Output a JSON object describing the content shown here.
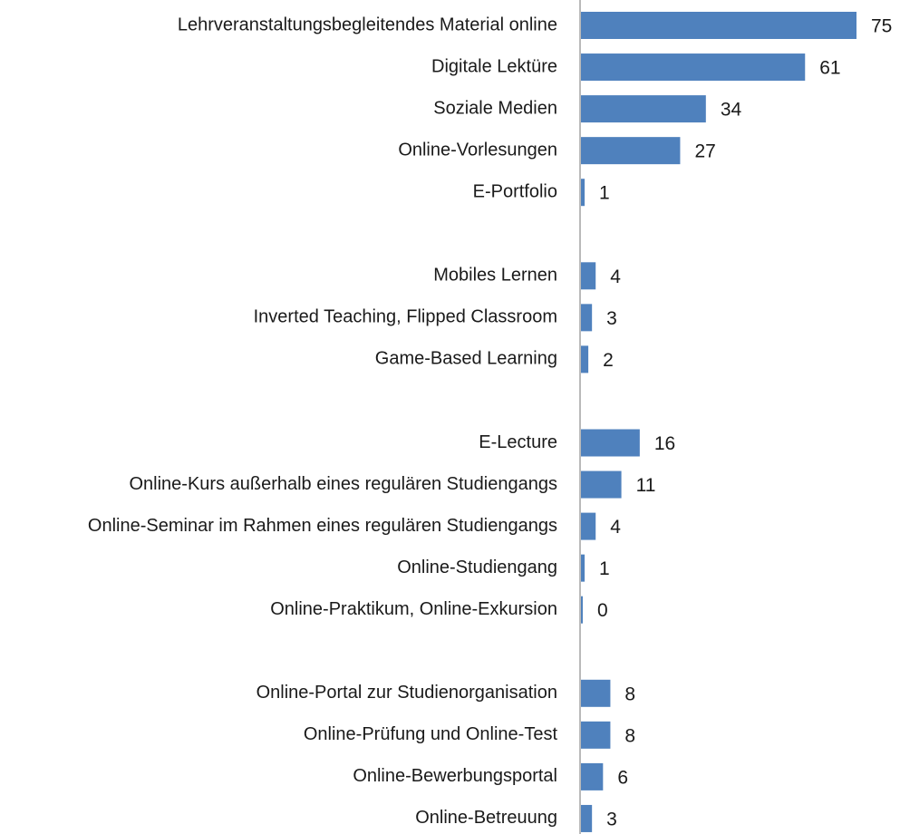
{
  "chart_data": {
    "type": "bar",
    "orientation": "horizontal",
    "categories": [
      "Lehrveranstaltungsbegleitendes Material online",
      "Digitale Lektüre",
      "Soziale Medien",
      "Online-Vorlesungen",
      "E-Portfolio",
      null,
      "Mobiles Lernen",
      "Inverted Teaching, Flipped Classroom",
      "Game-Based Learning",
      null,
      "E-Lecture",
      "Online-Kurs außerhalb eines regulären Studiengangs",
      "Online-Seminar im Rahmen eines regulären Studiengangs",
      "Online-Studiengang",
      "Online-Praktikum, Online-Exkursion",
      null,
      "Online-Portal zur Studienorganisation",
      "Online-Prüfung und Online-Test",
      "Online-Bewerbungsportal",
      "Online-Betreuung"
    ],
    "values": [
      75,
      61,
      34,
      27,
      1,
      null,
      4,
      3,
      2,
      null,
      16,
      11,
      4,
      1,
      0,
      null,
      8,
      8,
      6,
      3
    ],
    "color": "#4f81bd",
    "xlim": [
      0,
      75
    ]
  }
}
